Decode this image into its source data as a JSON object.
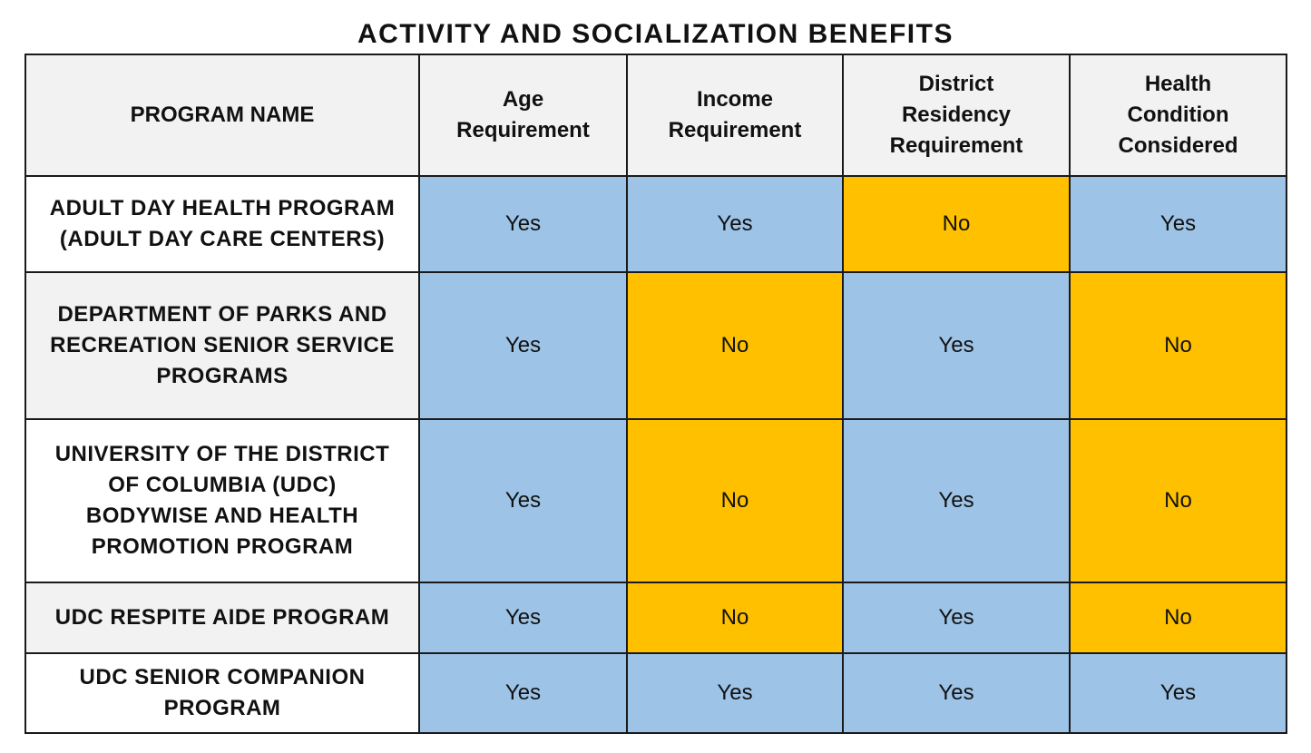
{
  "title": "ACTIVITY AND SOCIALIZATION BENEFITS",
  "columns": [
    "PROGRAM NAME",
    "Age Requirement",
    "Income Requirement",
    "District Residency Requirement",
    "Health Condition Considered"
  ],
  "rows": [
    {
      "name": "ADULT DAY HEALTH PROGRAM (ADULT DAY CARE CENTERS)",
      "values": [
        "Yes",
        "Yes",
        "No",
        "Yes"
      ]
    },
    {
      "name": "DEPARTMENT OF PARKS AND RECREATION SENIOR SERVICE PROGRAMS",
      "values": [
        "Yes",
        "No",
        "Yes",
        "No"
      ]
    },
    {
      "name": "UNIVERSITY OF THE DISTRICT OF COLUMBIA (UDC) BODYWISE AND HEALTH PROMOTION PROGRAM",
      "values": [
        "Yes",
        "No",
        "Yes",
        "No"
      ]
    },
    {
      "name": "UDC RESPITE AIDE PROGRAM",
      "values": [
        "Yes",
        "No",
        "Yes",
        "No"
      ]
    },
    {
      "name": "UDC SENIOR COMPANION PROGRAM",
      "values": [
        "Yes",
        "Yes",
        "Yes",
        "Yes"
      ]
    }
  ],
  "colors": {
    "yes": "#9dc3e6",
    "no": "#ffc000",
    "header_bg": "#f2f2f2"
  }
}
